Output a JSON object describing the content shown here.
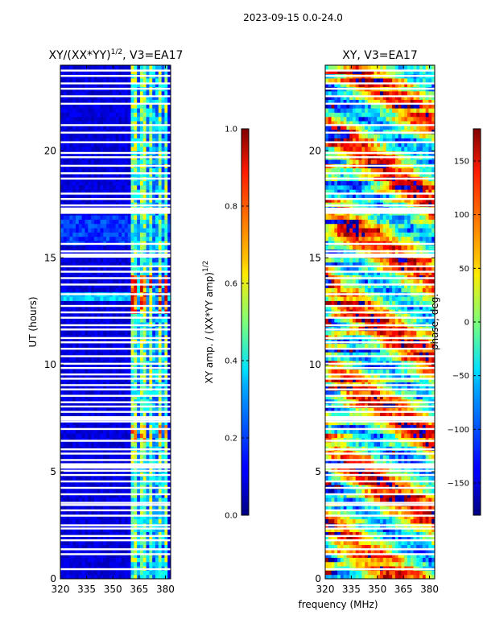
{
  "suptitle": "2023-09-15 0.0-24.0",
  "xlabel_shared": "frequency (MHz)",
  "chart_data": [
    {
      "type": "heatmap",
      "title": "XY/(XX*YY)",
      "title_sup": "1/2",
      "title_suffix": ", V3=EA17",
      "xlabel": "",
      "ylabel": "UT (hours)",
      "xlim": [
        320,
        383
      ],
      "ylim": [
        0,
        24
      ],
      "xticks": [
        320,
        335,
        350,
        365,
        380
      ],
      "yticks": [
        0,
        5,
        10,
        15,
        20
      ],
      "colorbar": {
        "label": "XY amp. / (XX*YY amp)",
        "label_sup": "1/2",
        "range": [
          0.0,
          1.0
        ],
        "ticks": [
          0.0,
          0.2,
          0.4,
          0.6,
          0.8,
          1.0
        ],
        "tick_labels": [
          "0.0",
          "0.2",
          "0.4",
          "0.6",
          "0.8",
          "1.0"
        ],
        "colormap": "jet"
      },
      "content": "normalized cross-hand amplitude; mostly near 0 below 360 MHz, bright (0.4-0.9) RFI channels between ~360 and ~381 MHz, strongest near 13-14 h"
    },
    {
      "type": "heatmap",
      "title": "XY, V3=EA17",
      "xlabel": "frequency (MHz)",
      "ylabel": "",
      "xlim": [
        320,
        383
      ],
      "ylim": [
        0,
        24
      ],
      "xticks": [
        320,
        335,
        350,
        365,
        380
      ],
      "yticks": [
        0,
        5,
        10,
        15,
        20
      ],
      "colorbar": {
        "label": "phase, deg.",
        "range": [
          -180,
          180
        ],
        "ticks": [
          -150,
          -100,
          -50,
          0,
          50,
          100,
          150
        ],
        "tick_labels": [
          "−150",
          "−100",
          "−50",
          "0",
          "50",
          "100",
          "150"
        ],
        "colormap": "jet"
      },
      "content": "cross-hand phase in degrees; noisy patchwork spanning -180 to 180"
    }
  ],
  "flagged_rows_hours": [
    0.45,
    1.15,
    1.38,
    1.8,
    2.0,
    2.35,
    2.5,
    2.95,
    3.2,
    3.45,
    3.55,
    3.95,
    4.25,
    4.55,
    4.85,
    5.05,
    5.35,
    5.55,
    5.85,
    6.05,
    6.45,
    7.0,
    7.35,
    7.55,
    7.8,
    8.05,
    8.25,
    8.55,
    8.85,
    9.05,
    9.35,
    9.55,
    9.85,
    10.05,
    10.4,
    10.75,
    11.05,
    11.25,
    11.65,
    11.85,
    12.2,
    12.45,
    12.75,
    13.3,
    13.75,
    14.05,
    14.35,
    14.6,
    15.05,
    15.3,
    15.65,
    17.1,
    17.45,
    17.75,
    18.0,
    18.7,
    18.95,
    19.3,
    19.7,
    19.9,
    20.4,
    20.85,
    21.2,
    22.2,
    22.55,
    22.9,
    23.15,
    23.5,
    23.75
  ],
  "flagged_bands_hours": [
    [
      5.15,
      5.4
    ],
    [
      7.4,
      7.6
    ],
    [
      15.05,
      15.2
    ],
    [
      17.1,
      17.35
    ]
  ]
}
